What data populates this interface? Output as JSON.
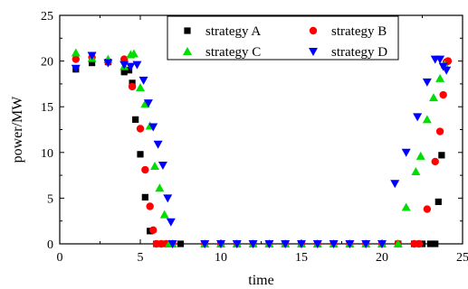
{
  "chart_data": {
    "type": "scatter",
    "xlabel": "time",
    "ylabel": "power/MW",
    "xlim": [
      0,
      25
    ],
    "ylim": [
      0,
      25
    ],
    "x_ticks": [
      "0",
      "5",
      "10",
      "15",
      "20",
      "25"
    ],
    "y_ticks": [
      "0",
      "5",
      "10",
      "15",
      "20",
      "25"
    ],
    "grid": false,
    "legend_position": "top-right",
    "series": [
      {
        "name": "strategy A",
        "marker": "square",
        "color": "#000000",
        "points": [
          [
            1,
            19.1
          ],
          [
            2,
            19.8
          ],
          [
            3,
            19.9
          ],
          [
            4,
            18.8
          ],
          [
            4.3,
            19.0
          ],
          [
            4.5,
            17.6
          ],
          [
            4.7,
            13.6
          ],
          [
            5,
            9.8
          ],
          [
            5.3,
            5.1
          ],
          [
            5.6,
            1.4
          ],
          [
            6,
            0
          ],
          [
            6.5,
            0
          ],
          [
            7,
            0
          ],
          [
            7.5,
            0
          ],
          [
            9,
            0
          ],
          [
            10,
            0
          ],
          [
            11,
            0
          ],
          [
            12,
            0
          ],
          [
            13,
            0
          ],
          [
            14,
            0
          ],
          [
            15,
            0
          ],
          [
            16,
            0
          ],
          [
            17,
            0
          ],
          [
            18,
            0
          ],
          [
            19,
            0
          ],
          [
            20,
            0
          ],
          [
            21,
            0
          ],
          [
            22,
            0
          ],
          [
            22.5,
            0
          ],
          [
            23,
            0
          ],
          [
            23.3,
            0
          ],
          [
            23.5,
            4.6
          ],
          [
            23.7,
            9.7
          ]
        ]
      },
      {
        "name": "strategy B",
        "marker": "circle",
        "color": "#ff0000",
        "points": [
          [
            1,
            20.2
          ],
          [
            2,
            20.4
          ],
          [
            3,
            19.9
          ],
          [
            4,
            20.2
          ],
          [
            4.5,
            17.2
          ],
          [
            5,
            12.6
          ],
          [
            5.3,
            8.1
          ],
          [
            5.6,
            4.1
          ],
          [
            5.8,
            1.5
          ],
          [
            6,
            0
          ],
          [
            6.3,
            0
          ],
          [
            6.6,
            0
          ],
          [
            7,
            0
          ],
          [
            9,
            0
          ],
          [
            10,
            0
          ],
          [
            11,
            0
          ],
          [
            12,
            0
          ],
          [
            13,
            0
          ],
          [
            14,
            0
          ],
          [
            15,
            0
          ],
          [
            16,
            0
          ],
          [
            17,
            0
          ],
          [
            18,
            0
          ],
          [
            19,
            0
          ],
          [
            20,
            0
          ],
          [
            21,
            0
          ],
          [
            22,
            0
          ],
          [
            22.3,
            0
          ],
          [
            22.8,
            3.8
          ],
          [
            23.3,
            9.0
          ],
          [
            23.6,
            12.3
          ],
          [
            23.8,
            16.3
          ],
          [
            24,
            19.9
          ],
          [
            24.1,
            20.0
          ]
        ]
      },
      {
        "name": "strategy C",
        "marker": "triangle-up",
        "color": "#00dd00",
        "points": [
          [
            1,
            20.9
          ],
          [
            2,
            20.3
          ],
          [
            3,
            20.2
          ],
          [
            4,
            19.4
          ],
          [
            4.4,
            20.7
          ],
          [
            4.6,
            20.8
          ],
          [
            5,
            17.1
          ],
          [
            5.3,
            15.3
          ],
          [
            5.6,
            12.9
          ],
          [
            5.9,
            8.5
          ],
          [
            6.2,
            6.1
          ],
          [
            6.5,
            3.2
          ],
          [
            6.8,
            0
          ],
          [
            7,
            0
          ],
          [
            9,
            0
          ],
          [
            10,
            0
          ],
          [
            11,
            0
          ],
          [
            12,
            0
          ],
          [
            13,
            0
          ],
          [
            14,
            0
          ],
          [
            15,
            0
          ],
          [
            16,
            0
          ],
          [
            17,
            0
          ],
          [
            18,
            0
          ],
          [
            19,
            0
          ],
          [
            20,
            0
          ],
          [
            21,
            0
          ],
          [
            21.5,
            4.0
          ],
          [
            22.1,
            7.9
          ],
          [
            22.4,
            9.6
          ],
          [
            22.8,
            13.6
          ],
          [
            23.2,
            16.0
          ],
          [
            23.6,
            18.1
          ],
          [
            23.9,
            19.6
          ]
        ]
      },
      {
        "name": "strategy D",
        "marker": "triangle-down",
        "color": "#0000ff",
        "points": [
          [
            1,
            19.2
          ],
          [
            2,
            20.6
          ],
          [
            3,
            19.8
          ],
          [
            4,
            19.6
          ],
          [
            4.4,
            19.4
          ],
          [
            4.8,
            19.6
          ],
          [
            5.2,
            17.9
          ],
          [
            5.5,
            15.4
          ],
          [
            5.8,
            12.8
          ],
          [
            6.1,
            10.9
          ],
          [
            6.4,
            8.6
          ],
          [
            6.7,
            5.0
          ],
          [
            6.9,
            2.4
          ],
          [
            7,
            0
          ],
          [
            9,
            0
          ],
          [
            10,
            0
          ],
          [
            11,
            0
          ],
          [
            12,
            0
          ],
          [
            13,
            0
          ],
          [
            14,
            0
          ],
          [
            15,
            0
          ],
          [
            16,
            0
          ],
          [
            17,
            0
          ],
          [
            18,
            0
          ],
          [
            19,
            0
          ],
          [
            20,
            0
          ],
          [
            20.8,
            6.6
          ],
          [
            21.5,
            10.0
          ],
          [
            22.2,
            13.9
          ],
          [
            22.8,
            17.7
          ],
          [
            23.3,
            20.2
          ],
          [
            23.6,
            20.2
          ],
          [
            23.8,
            19.4
          ],
          [
            24,
            19.0
          ]
        ]
      }
    ]
  }
}
